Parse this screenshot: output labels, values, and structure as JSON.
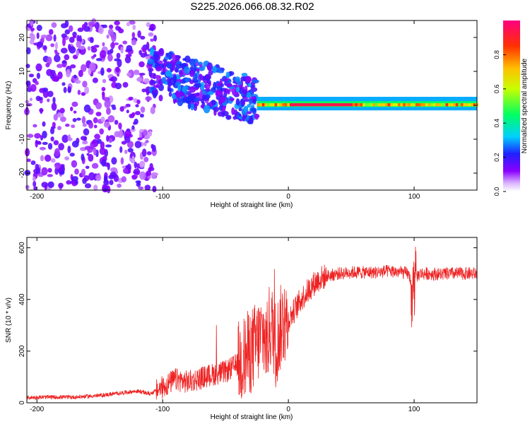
{
  "title": "S225.2026.066.08.32.R02",
  "chart_data": [
    {
      "type": "heatmap",
      "name": "spectrogram",
      "xlabel": "Height of straight line (km)",
      "ylabel": "Frequency (Hz)",
      "xlim": [
        -208,
        150
      ],
      "ylim": [
        -25,
        25
      ],
      "xticks": [
        -200,
        -100,
        0,
        100
      ],
      "yticks": [
        20,
        10,
        0,
        -10,
        -20
      ],
      "description_regions": [
        {
          "x_range": [
            -208,
            -105
          ],
          "freq_range": [
            -25,
            25
          ],
          "amplitude": [
            0.05,
            0.2
          ]
        },
        {
          "x_range": [
            -110,
            -25
          ],
          "freq_range": [
            -8,
            14
          ],
          "amplitude": [
            0.1,
            0.35
          ]
        },
        {
          "x_range": [
            -25,
            150
          ],
          "freq_range": [
            -1,
            1.5
          ],
          "amplitude": [
            0.3,
            0.95
          ]
        }
      ],
      "colorbar": {
        "label": "Normalized spectral amplitude",
        "ticks": [
          0.0,
          0.2,
          0.4,
          0.6,
          0.8
        ],
        "range": [
          0,
          1
        ],
        "colors": [
          "#ffffff",
          "#8a00ff",
          "#2020ff",
          "#00d0ff",
          "#00ff60",
          "#c8ff00",
          "#ffc000",
          "#ff3000",
          "#ff0080"
        ]
      }
    },
    {
      "type": "line",
      "name": "snr",
      "xlabel": "Height of straight line (km)",
      "ylabel": "SNR (10 * v/v)",
      "xlim": [
        -208,
        150
      ],
      "ylim": [
        0,
        640
      ],
      "xticks": [
        -200,
        -100,
        0,
        100
      ],
      "yticks": [
        0,
        200,
        400,
        600
      ],
      "color": "#ee2222",
      "series": [
        {
          "name": "SNR",
          "x": [
            -208,
            -190,
            -170,
            -150,
            -130,
            -120,
            -110,
            -100,
            -90,
            -80,
            -70,
            -60,
            -50,
            -40,
            -30,
            -25,
            -20,
            -17,
            -15,
            -12,
            -10,
            -5,
            0,
            5,
            10,
            15,
            20,
            25,
            30,
            40,
            50,
            60,
            70,
            80,
            90,
            95,
            98,
            100,
            102,
            105,
            110,
            120,
            130,
            140,
            150
          ],
          "y": [
            20,
            22,
            22,
            28,
            40,
            45,
            35,
            60,
            90,
            80,
            95,
            110,
            120,
            150,
            200,
            230,
            270,
            220,
            300,
            280,
            220,
            310,
            320,
            360,
            400,
            430,
            460,
            480,
            490,
            500,
            505,
            505,
            505,
            510,
            505,
            500,
            470,
            460,
            490,
            500,
            500,
            498,
            500,
            500,
            500
          ]
        }
      ]
    }
  ]
}
